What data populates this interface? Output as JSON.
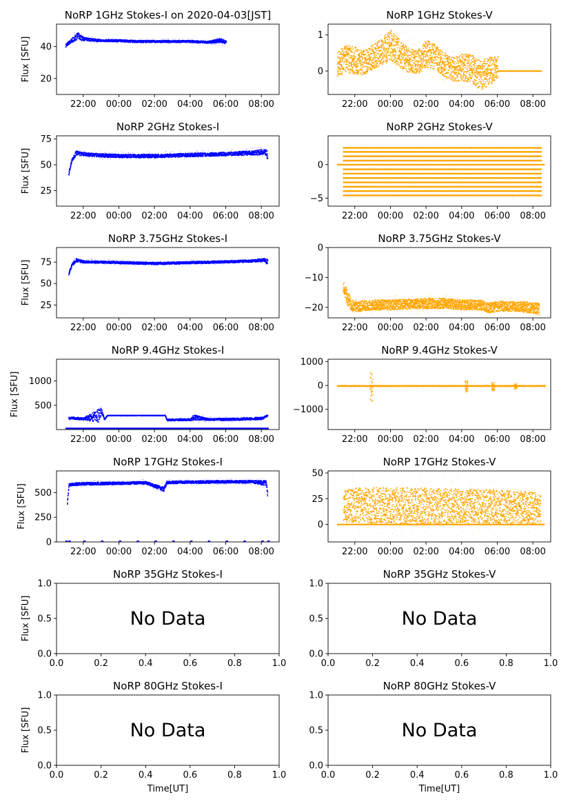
{
  "figure": {
    "xlabel_time": "Time[UT]",
    "no_data_text": "No Data"
  },
  "colors": {
    "stokes_i": "#0000ff",
    "stokes_v": "#ffa500",
    "axes": "#000000"
  },
  "chart_data": [
    {
      "type": "scatter",
      "title": "NoRP 1GHz Stokes-I on 2020-04-03[JST]",
      "ylabel": "Flux [SFU]",
      "xlabel": "",
      "grid": false,
      "x_tick_labels": [
        "22:00",
        "00:00",
        "02:00",
        "04:00",
        "06:00",
        "08:00"
      ],
      "ylim": [
        10,
        54
      ],
      "y_ticks": [
        20,
        40
      ],
      "series": [
        {
          "color": "stokes_i",
          "x": [
            "21:00",
            "21:20",
            "21:40",
            "22:00",
            "23:00",
            "00:00",
            "01:00",
            "02:00",
            "03:00",
            "04:00",
            "05:00",
            "05:40",
            "06:00"
          ],
          "y": [
            41,
            44,
            47,
            45,
            44,
            44,
            43.5,
            43.5,
            43.5,
            43.5,
            43,
            44,
            43
          ],
          "spread": [
            1.5,
            2,
            3,
            1.5,
            1,
            1,
            1,
            1,
            1,
            1,
            1,
            2,
            1.5
          ]
        }
      ]
    },
    {
      "type": "scatter",
      "title": "NoRP 1GHz Stokes-V",
      "ylabel": "",
      "xlabel": "",
      "grid": false,
      "x_tick_labels": [
        "22:00",
        "00:00",
        "02:00",
        "04:00",
        "06:00",
        "08:00"
      ],
      "ylim": [
        -0.65,
        1.3
      ],
      "y_ticks": [
        0,
        1
      ],
      "series": [
        {
          "color": "stokes_v",
          "x": [
            "21:00",
            "21:30",
            "22:00",
            "22:30",
            "23:00",
            "23:30",
            "00:00",
            "00:30",
            "01:00",
            "01:30",
            "02:00",
            "02:30",
            "03:00",
            "03:30",
            "04:00",
            "04:30",
            "05:00",
            "05:30",
            "06:00"
          ],
          "y": [
            0.2,
            0.35,
            0.3,
            0.25,
            0.4,
            0.55,
            0.75,
            0.5,
            0.3,
            0.25,
            0.5,
            0.4,
            0.2,
            0.05,
            0.1,
            0.1,
            -0.1,
            0.0,
            0.15
          ],
          "spread": [
            0.4,
            0.45,
            0.45,
            0.4,
            0.4,
            0.45,
            0.5,
            0.45,
            0.4,
            0.4,
            0.45,
            0.4,
            0.4,
            0.4,
            0.45,
            0.45,
            0.5,
            0.45,
            0.4
          ]
        },
        {
          "color": "stokes_v",
          "x": [
            "06:00",
            "08:30"
          ],
          "y": [
            0,
            0
          ],
          "spread": [
            0,
            0
          ]
        }
      ]
    },
    {
      "type": "scatter",
      "title": "NoRP 2GHz Stokes-I",
      "ylabel": "Flux [SFU]",
      "xlabel": "",
      "grid": false,
      "x_tick_labels": [
        "22:00",
        "00:00",
        "02:00",
        "04:00",
        "06:00",
        "08:00"
      ],
      "ylim": [
        10,
        78
      ],
      "y_ticks": [
        25,
        50,
        75
      ],
      "series": [
        {
          "color": "stokes_i",
          "x": [
            "21:10",
            "21:20",
            "21:35",
            "21:50",
            "22:30",
            "00:00",
            "02:00",
            "04:00",
            "06:00",
            "07:30",
            "08:10",
            "08:20"
          ],
          "y": [
            42,
            55,
            62,
            61,
            60,
            59,
            59,
            60,
            61,
            62,
            63,
            60
          ],
          "spread": [
            2,
            3,
            3,
            2.5,
            2.5,
            2.5,
            2.5,
            2.5,
            2.5,
            3,
            4,
            6
          ]
        }
      ]
    },
    {
      "type": "scatter",
      "title": "NoRP 2GHz Stokes-V",
      "ylabel": "",
      "xlabel": "",
      "grid": false,
      "x_tick_labels": [
        "22:00",
        "00:00",
        "02:00",
        "04:00",
        "06:00",
        "08:00"
      ],
      "ylim": [
        -6.2,
        4.3
      ],
      "y_ticks": [
        -5,
        0
      ],
      "series": [
        {
          "color": "stokes_v",
          "x": [
            "21:00",
            "08:40"
          ],
          "y": [
            0,
            0
          ],
          "spread": [
            0,
            0
          ]
        }
      ],
      "levels": [
        -4.6,
        -3.95,
        -3.3,
        -2.65,
        -2.0,
        -1.35,
        -0.7,
        0.6,
        1.25,
        1.9,
        2.5
      ],
      "levels_x": [
        "21:20",
        "08:30"
      ]
    },
    {
      "type": "scatter",
      "title": "NoRP 3.75GHz Stokes-I",
      "ylabel": "Flux [SFU]",
      "xlabel": "",
      "grid": false,
      "x_tick_labels": [
        "22:00",
        "00:00",
        "02:00",
        "04:00",
        "06:00",
        "08:00"
      ],
      "ylim": [
        10,
        92
      ],
      "y_ticks": [
        25,
        50,
        75
      ],
      "series": [
        {
          "color": "stokes_i",
          "x": [
            "21:10",
            "21:20",
            "21:35",
            "22:00",
            "00:00",
            "02:00",
            "04:00",
            "06:00",
            "07:30",
            "08:10",
            "08:20"
          ],
          "y": [
            62,
            72,
            78,
            76,
            75,
            74,
            75,
            76,
            77,
            78,
            76
          ],
          "spread": [
            2,
            3,
            3,
            2,
            2,
            2,
            2,
            2,
            2,
            3,
            6
          ]
        }
      ]
    },
    {
      "type": "scatter",
      "title": "NoRP 3.75GHz Stokes-V",
      "ylabel": "",
      "xlabel": "",
      "grid": false,
      "x_tick_labels": [
        "22:00",
        "00:00",
        "02:00",
        "04:00",
        "06:00",
        "08:00"
      ],
      "ylim": [
        -23.5,
        0
      ],
      "y_ticks": [
        -20,
        -10,
        0
      ],
      "series": [
        {
          "color": "stokes_v",
          "x": [
            "21:20",
            "21:35",
            "21:50",
            "22:10",
            "23:00",
            "00:00",
            "01:00",
            "02:00",
            "03:00",
            "04:00",
            "05:00",
            "05:30",
            "06:00",
            "07:00",
            "08:00",
            "08:20"
          ],
          "y": [
            -13,
            -17,
            -19,
            -19.5,
            -19,
            -19,
            -18.7,
            -18.5,
            -18.5,
            -19,
            -19,
            -20,
            -19.5,
            -19.5,
            -20,
            -20.5
          ],
          "spread": [
            2,
            3,
            2.5,
            2,
            2,
            2,
            2,
            2.2,
            2,
            2,
            2,
            2,
            2,
            2,
            2.2,
            2.5
          ]
        }
      ]
    },
    {
      "type": "scatter",
      "title": "NoRP 9.4GHz Stokes-I",
      "ylabel": "Flux [SFU]",
      "xlabel": "",
      "grid": false,
      "x_tick_labels": [
        "22:00",
        "00:00",
        "02:00",
        "04:00",
        "06:00",
        "08:00"
      ],
      "ylim": [
        0,
        1450
      ],
      "y_ticks": [
        500,
        1000
      ],
      "series": [
        {
          "color": "stokes_i",
          "x": [
            "21:10",
            "22:00",
            "22:50",
            "23:00",
            "23:10",
            "23:20",
            "00:00",
            "01:00",
            "02:00",
            "02:35",
            "02:40",
            "03:00",
            "04:00",
            "04:10",
            "05:00",
            "06:00",
            "07:00",
            "08:00",
            "08:20"
          ],
          "y": [
            250,
            230,
            300,
            400,
            220,
            300,
            300,
            300,
            300,
            300,
            210,
            210,
            215,
            260,
            220,
            220,
            230,
            240,
            300
          ],
          "spread": [
            40,
            30,
            200,
            80,
            30,
            5,
            5,
            5,
            5,
            5,
            30,
            30,
            30,
            80,
            30,
            35,
            35,
            35,
            20
          ]
        },
        {
          "color": "stokes_i",
          "x": [
            "21:00",
            "08:25"
          ],
          "y": [
            25,
            25
          ],
          "spread": [
            0,
            0
          ]
        }
      ]
    },
    {
      "type": "scatter",
      "title": "NoRP 9.4GHz Stokes-V",
      "ylabel": "",
      "xlabel": "",
      "grid": false,
      "x_tick_labels": [
        "22:00",
        "00:00",
        "02:00",
        "04:00",
        "06:00",
        "08:00"
      ],
      "ylim": [
        -1850,
        1100
      ],
      "y_ticks": [
        -1000,
        0,
        1000
      ],
      "series": [
        {
          "color": "stokes_v",
          "x": [
            "21:00",
            "08:40"
          ],
          "y": [
            0,
            0
          ],
          "spread": [
            25,
            25
          ]
        }
      ],
      "spikes": [
        [
          "22:55",
          600,
          -650
        ],
        [
          "04:15",
          250,
          -300
        ],
        [
          "05:45",
          150,
          -200
        ],
        [
          "07:00",
          120,
          -150
        ]
      ]
    },
    {
      "type": "scatter",
      "title": "NoRP 17GHz Stokes-I",
      "ylabel": "Flux [SFU]",
      "xlabel": "",
      "grid": false,
      "x_tick_labels": [
        "22:00",
        "00:00",
        "02:00",
        "04:00",
        "06:00",
        "08:00"
      ],
      "ylim": [
        0,
        720
      ],
      "y_ticks": [
        0,
        250,
        500
      ],
      "series": [
        {
          "color": "stokes_i",
          "x": [
            "21:05",
            "21:10",
            "21:20",
            "22:00",
            "00:00",
            "01:30",
            "02:30",
            "02:40",
            "03:00",
            "04:00",
            "06:00",
            "07:30",
            "08:15",
            "08:20"
          ],
          "y": [
            400,
            580,
            590,
            595,
            600,
            605,
            540,
            605,
            610,
            612,
            615,
            615,
            600,
            480
          ],
          "spread": [
            30,
            20,
            20,
            20,
            20,
            20,
            30,
            20,
            20,
            20,
            20,
            20,
            40,
            70
          ]
        }
      ],
      "baseline_dots": [
        "21:00",
        "21:10",
        "22:00",
        "23:00",
        "00:00",
        "01:00",
        "02:00",
        "03:00",
        "04:00",
        "05:00",
        "06:00",
        "07:00",
        "08:00",
        "08:20"
      ]
    },
    {
      "type": "scatter",
      "title": "NoRP 17GHz Stokes-V",
      "ylabel": "",
      "xlabel": "",
      "grid": false,
      "x_tick_labels": [
        "22:00",
        "00:00",
        "02:00",
        "04:00",
        "06:00",
        "08:00"
      ],
      "ylim": [
        -17,
        52
      ],
      "y_ticks": [
        0,
        25,
        50
      ],
      "series": [
        {
          "color": "stokes_v",
          "x": [
            "21:20",
            "22:00",
            "00:00",
            "02:00",
            "04:00",
            "06:00",
            "08:00",
            "08:25"
          ],
          "y": [
            18,
            19,
            19,
            18,
            18,
            17,
            17,
            15
          ],
          "spread": [
            18,
            20,
            21,
            21,
            20,
            20,
            18,
            16
          ]
        },
        {
          "color": "stokes_v",
          "x": [
            "21:00",
            "08:40"
          ],
          "y": [
            0,
            0
          ],
          "spread": [
            0,
            0
          ]
        }
      ]
    },
    {
      "type": "scatter",
      "title": "NoRP 35GHz Stokes-I",
      "ylabel": "Flux [SFU]",
      "xlabel": "",
      "grid": false,
      "no_data": true,
      "x_tick_labels": [
        "0.0",
        "0.2",
        "0.4",
        "0.6",
        "0.8",
        "1.0"
      ],
      "ylim": [
        0,
        1
      ],
      "y_tick_labels": [
        "0.0",
        "0.5",
        "1.0"
      ],
      "series": []
    },
    {
      "type": "scatter",
      "title": "NoRP 35GHz Stokes-V",
      "ylabel": "",
      "xlabel": "",
      "grid": false,
      "no_data": true,
      "x_tick_labels": [
        "0.0",
        "0.2",
        "0.4",
        "0.6",
        "0.8",
        "1.0"
      ],
      "ylim": [
        0,
        1
      ],
      "y_tick_labels": [
        "0.0",
        "0.5",
        "1.0"
      ],
      "series": []
    },
    {
      "type": "scatter",
      "title": "NoRP 80GHz Stokes-I",
      "ylabel": "Flux [SFU]",
      "xlabel": "Time[UT]",
      "grid": false,
      "no_data": true,
      "x_tick_labels": [
        "0.0",
        "0.2",
        "0.4",
        "0.6",
        "0.8",
        "1.0"
      ],
      "ylim": [
        0,
        1
      ],
      "y_tick_labels": [
        "0.0",
        "0.5",
        "1.0"
      ],
      "series": []
    },
    {
      "type": "scatter",
      "title": "NoRP 80GHz Stokes-V",
      "ylabel": "",
      "xlabel": "Time[UT]",
      "grid": false,
      "no_data": true,
      "x_tick_labels": [
        "0.0",
        "0.2",
        "0.4",
        "0.6",
        "0.8",
        "1.0"
      ],
      "ylim": [
        0,
        1
      ],
      "y_tick_labels": [
        "0.0",
        "0.5",
        "1.0"
      ],
      "series": []
    }
  ]
}
